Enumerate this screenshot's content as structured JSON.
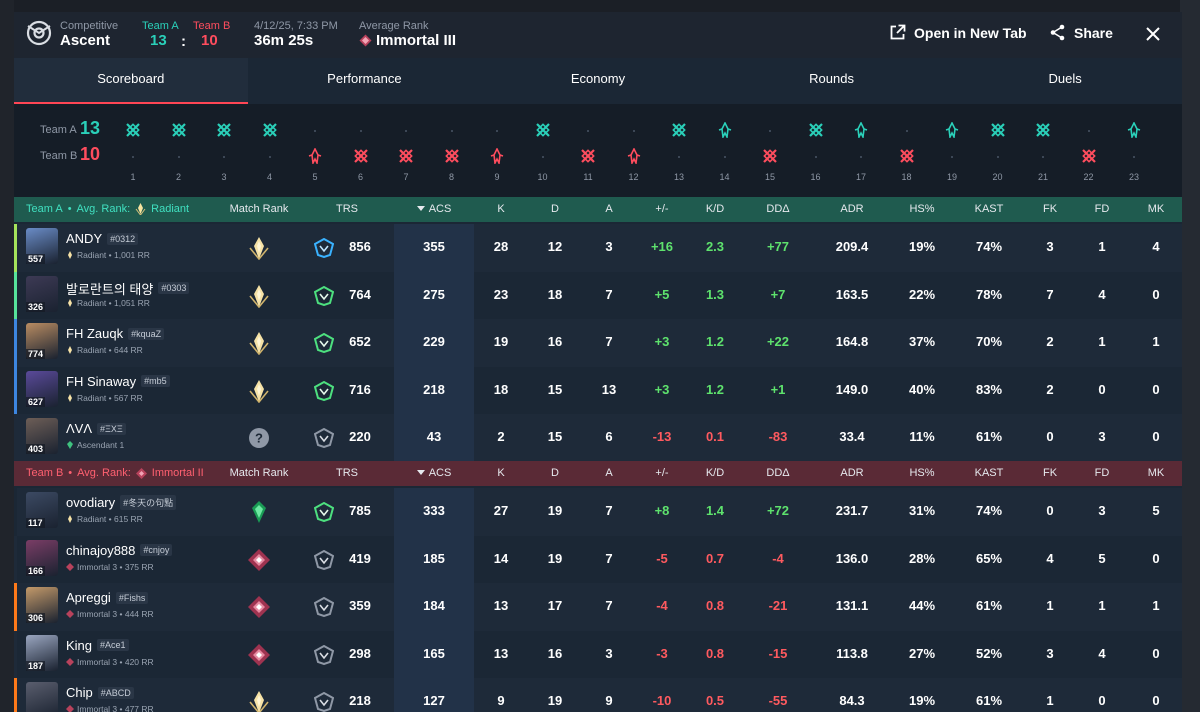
{
  "header": {
    "mode": "Competitive",
    "map": "Ascent",
    "team_a_label": "Team A",
    "team_b_label": "Team B",
    "team_a_score": "13",
    "score_sep": ":",
    "team_b_score": "10",
    "date": "4/12/25, 7:33 PM",
    "duration": "36m 25s",
    "avg_rank_label": "Average Rank",
    "avg_rank": "Immortal III",
    "open_new_tab": "Open in New Tab",
    "share": "Share"
  },
  "tabs": [
    "Scoreboard",
    "Performance",
    "Economy",
    "Rounds",
    "Duels"
  ],
  "timeline": {
    "team_a_label": "Team A",
    "team_a_score": "13",
    "team_b_label": "Team B",
    "team_b_score": "10",
    "rounds": [
      {
        "n": "1",
        "winner": "A",
        "type": "elim"
      },
      {
        "n": "2",
        "winner": "A",
        "type": "elim"
      },
      {
        "n": "3",
        "winner": "A",
        "type": "elim"
      },
      {
        "n": "4",
        "winner": "A",
        "type": "elim"
      },
      {
        "n": "5",
        "winner": "B",
        "type": "spike"
      },
      {
        "n": "6",
        "winner": "B",
        "type": "elim"
      },
      {
        "n": "7",
        "winner": "B",
        "type": "elim"
      },
      {
        "n": "8",
        "winner": "B",
        "type": "elim"
      },
      {
        "n": "9",
        "winner": "B",
        "type": "spike"
      },
      {
        "n": "10",
        "winner": "A",
        "type": "elim"
      },
      {
        "n": "11",
        "winner": "B",
        "type": "elim"
      },
      {
        "n": "12",
        "winner": "B",
        "type": "spike"
      },
      {
        "n": "13",
        "winner": "A",
        "type": "elim"
      },
      {
        "n": "14",
        "winner": "A",
        "type": "spike"
      },
      {
        "n": "15",
        "winner": "B",
        "type": "elim"
      },
      {
        "n": "16",
        "winner": "A",
        "type": "elim"
      },
      {
        "n": "17",
        "winner": "A",
        "type": "spike"
      },
      {
        "n": "18",
        "winner": "B",
        "type": "elim"
      },
      {
        "n": "19",
        "winner": "A",
        "type": "spike"
      },
      {
        "n": "20",
        "winner": "A",
        "type": "elim"
      },
      {
        "n": "21",
        "winner": "A",
        "type": "elim"
      },
      {
        "n": "22",
        "winner": "B",
        "type": "elim"
      },
      {
        "n": "23",
        "winner": "A",
        "type": "spike"
      }
    ]
  },
  "columns": [
    "Match Rank",
    "TRS",
    "ACS",
    "K",
    "D",
    "A",
    "+/-",
    "K/D",
    "DDΔ",
    "ADR",
    "HS%",
    "KAST",
    "FK",
    "FD",
    "MK"
  ],
  "team_a": {
    "label": "Team A",
    "sep": "•",
    "avg_label": "Avg. Rank:",
    "avg_rank": "Radiant",
    "color": "#2ad0b9",
    "players": [
      {
        "name": "ANDY",
        "tag": "#0312",
        "rank": "Radiant • 1,001 RR",
        "level": "557",
        "stripe": "#a5e35b",
        "mr": "radiant",
        "trs_icon": "blue",
        "trs": "856",
        "acs": "355",
        "k": "28",
        "d": "12",
        "a": "3",
        "pm": "+16",
        "kd": "2.3",
        "dd": "+77",
        "adr": "209.4",
        "hs": "19%",
        "kast": "74%",
        "fk": "3",
        "fd": "1",
        "mk": "4",
        "avatar": "#6a8cc7"
      },
      {
        "name": "발로란트의 태양",
        "tag": "#0303",
        "rank": "Radiant • 1,051 RR",
        "level": "326",
        "stripe": "#56e39b",
        "mr": "radiant",
        "trs_icon": "green",
        "trs": "764",
        "acs": "275",
        "k": "23",
        "d": "18",
        "a": "7",
        "pm": "+5",
        "kd": "1.3",
        "dd": "+7",
        "adr": "163.5",
        "hs": "22%",
        "kast": "78%",
        "fk": "7",
        "fd": "4",
        "mk": "0",
        "avatar": "#3d3a55"
      },
      {
        "name": "FH Zauqk",
        "tag": "#kquaZ",
        "rank": "Radiant • 644 RR",
        "level": "774",
        "stripe": "#3d86e0",
        "mr": "radiant",
        "trs_icon": "green",
        "trs": "652",
        "acs": "229",
        "k": "19",
        "d": "16",
        "a": "7",
        "pm": "+3",
        "kd": "1.2",
        "dd": "+22",
        "adr": "164.8",
        "hs": "37%",
        "kast": "70%",
        "fk": "2",
        "fd": "1",
        "mk": "1",
        "avatar": "#b98c62"
      },
      {
        "name": "FH Sinaway",
        "tag": "#mb5",
        "rank": "Radiant • 567 RR",
        "level": "627",
        "stripe": "#3d86e0",
        "mr": "radiant",
        "trs_icon": "green",
        "trs": "716",
        "acs": "218",
        "k": "18",
        "d": "15",
        "a": "13",
        "pm": "+3",
        "kd": "1.2",
        "dd": "+1",
        "adr": "149.0",
        "hs": "40%",
        "kast": "83%",
        "fk": "2",
        "fd": "0",
        "mk": "0",
        "avatar": "#5a4a9a"
      },
      {
        "name": "ΛVΛ",
        "tag": "#ΞXΞ",
        "rank": "Ascendant 1",
        "level": "403",
        "stripe": "#1e2a39",
        "mr": "unknown",
        "trs_icon": "gray",
        "trs": "220",
        "acs": "43",
        "k": "2",
        "d": "15",
        "a": "6",
        "pm": "-13",
        "kd": "0.1",
        "dd": "-83",
        "adr": "33.4",
        "hs": "11%",
        "kast": "61%",
        "fk": "0",
        "fd": "3",
        "mk": "0",
        "avatar": "#6d5e57"
      }
    ]
  },
  "team_b": {
    "label": "Team B",
    "sep": "•",
    "avg_label": "Avg. Rank:",
    "avg_rank": "Immortal II",
    "color": "#ff4d5e",
    "players": [
      {
        "name": "ovodiary",
        "tag": "#冬天の句點",
        "rank": "Radiant • 615 RR",
        "level": "117",
        "stripe": "#1b2735",
        "mr": "ascendant",
        "trs_icon": "green",
        "trs": "785",
        "acs": "333",
        "k": "27",
        "d": "19",
        "a": "7",
        "pm": "+8",
        "kd": "1.4",
        "dd": "+72",
        "adr": "231.7",
        "hs": "31%",
        "kast": "74%",
        "fk": "0",
        "fd": "3",
        "mk": "5",
        "avatar": "#3c4a63"
      },
      {
        "name": "chinajoy888",
        "tag": "#cnjoy",
        "rank": "Immortal 3 • 375 RR",
        "level": "166",
        "stripe": "#1e2a39",
        "mr": "immortal",
        "trs_icon": "gray",
        "trs": "419",
        "acs": "185",
        "k": "14",
        "d": "19",
        "a": "7",
        "pm": "-5",
        "kd": "0.7",
        "dd": "-4",
        "adr": "136.0",
        "hs": "28%",
        "kast": "65%",
        "fk": "4",
        "fd": "5",
        "mk": "0",
        "avatar": "#7a3d66"
      },
      {
        "name": "Apreggi",
        "tag": "#Fishs",
        "rank": "Immortal 3 • 444 RR",
        "level": "306",
        "stripe": "#ff7a1a",
        "mr": "immortal",
        "trs_icon": "gray",
        "trs": "359",
        "acs": "184",
        "k": "13",
        "d": "17",
        "a": "7",
        "pm": "-4",
        "kd": "0.8",
        "dd": "-21",
        "adr": "131.1",
        "hs": "44%",
        "kast": "61%",
        "fk": "1",
        "fd": "1",
        "mk": "1",
        "avatar": "#c49a6a"
      },
      {
        "name": "King",
        "tag": "#Ace1",
        "rank": "Immortal 3 • 420 RR",
        "level": "187",
        "stripe": "#1e2a39",
        "mr": "immortal",
        "trs_icon": "gray",
        "trs": "298",
        "acs": "165",
        "k": "13",
        "d": "16",
        "a": "3",
        "pm": "-3",
        "kd": "0.8",
        "dd": "-15",
        "adr": "113.8",
        "hs": "27%",
        "kast": "52%",
        "fk": "3",
        "fd": "4",
        "mk": "0",
        "avatar": "#9aa6c0"
      },
      {
        "name": "Chip",
        "tag": "#ABCD",
        "rank": "Immortal 3 • 477 RR",
        "level": "",
        "stripe": "#ff7a1a",
        "mr": "radiant",
        "trs_icon": "gray",
        "trs": "218",
        "acs": "127",
        "k": "9",
        "d": "19",
        "a": "9",
        "pm": "-10",
        "kd": "0.5",
        "dd": "-55",
        "adr": "84.3",
        "hs": "19%",
        "kast": "61%",
        "fk": "1",
        "fd": "0",
        "mk": "0",
        "avatar": "#5a5e6e"
      }
    ]
  }
}
